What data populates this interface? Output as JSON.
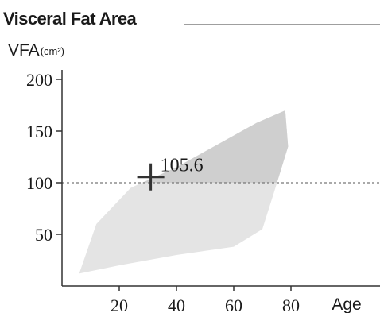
{
  "title": "Visceral Fat Area",
  "ylabel": {
    "main": "VFA",
    "unit": "(cm²)"
  },
  "xlabel": "Age",
  "chart_data": {
    "type": "scatter",
    "title": "Visceral Fat Area",
    "xlabel": "Age",
    "ylabel": "VFA(cm²)",
    "xlim": [
      0,
      110
    ],
    "ylim": [
      0,
      210
    ],
    "x_ticks": [
      20,
      40,
      60,
      80
    ],
    "y_ticks": [
      50,
      100,
      150,
      200
    ],
    "grid": false,
    "reference_line": {
      "y": 100,
      "style": "dashed",
      "color": "#777777"
    },
    "reference_band": {
      "color": "#e4e4e4",
      "overlap_color": "#cfcfcf",
      "lower_bound": [
        {
          "x": 6,
          "y": 12
        },
        {
          "x": 20,
          "y": 20
        },
        {
          "x": 40,
          "y": 30
        },
        {
          "x": 60,
          "y": 38
        },
        {
          "x": 70,
          "y": 55
        },
        {
          "x": 74,
          "y": 90
        },
        {
          "x": 79,
          "y": 135
        }
      ],
      "upper_bound": [
        {
          "x": 6,
          "y": 12
        },
        {
          "x": 12,
          "y": 60
        },
        {
          "x": 24,
          "y": 95
        },
        {
          "x": 40,
          "y": 115
        },
        {
          "x": 55,
          "y": 138
        },
        {
          "x": 68,
          "y": 158
        },
        {
          "x": 78,
          "y": 170
        },
        {
          "x": 79,
          "y": 135
        }
      ]
    },
    "series": [
      {
        "points": [
          {
            "x": 31,
            "y": 105.6,
            "label": "105.6"
          }
        ]
      }
    ]
  }
}
